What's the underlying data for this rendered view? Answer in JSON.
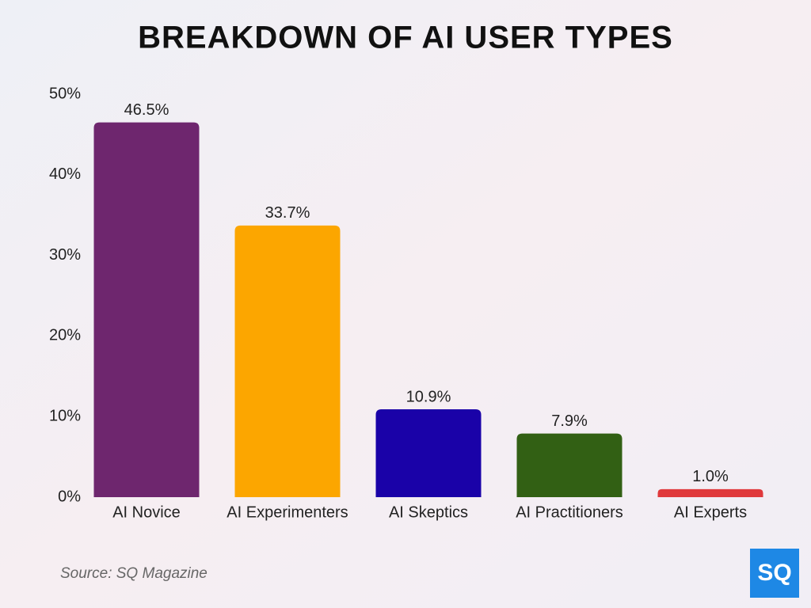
{
  "chart_data": {
    "type": "bar",
    "title": "BREAKDOWN OF AI USER TYPES",
    "categories": [
      "AI Novice",
      "AI Experimenters",
      "AI Skeptics",
      "AI Practitioners",
      "AI Experts"
    ],
    "values": [
      46.5,
      33.7,
      10.9,
      7.9,
      1.0
    ],
    "value_labels": [
      "46.5%",
      "33.7%",
      "10.9%",
      "7.9%",
      "1.0%"
    ],
    "colors": [
      "#6e266e",
      "#fca600",
      "#1a02a8",
      "#326014",
      "#e0393c"
    ],
    "ylim": [
      0,
      50
    ],
    "yticks": [
      {
        "value": 0,
        "label": "0%"
      },
      {
        "value": 10,
        "label": "10%"
      },
      {
        "value": 20,
        "label": "20%"
      },
      {
        "value": 30,
        "label": "30%"
      },
      {
        "value": 40,
        "label": "40%"
      },
      {
        "value": 50,
        "label": "50%"
      }
    ],
    "grid": false,
    "source": "Source: SQ Magazine",
    "logo": "SQ"
  }
}
